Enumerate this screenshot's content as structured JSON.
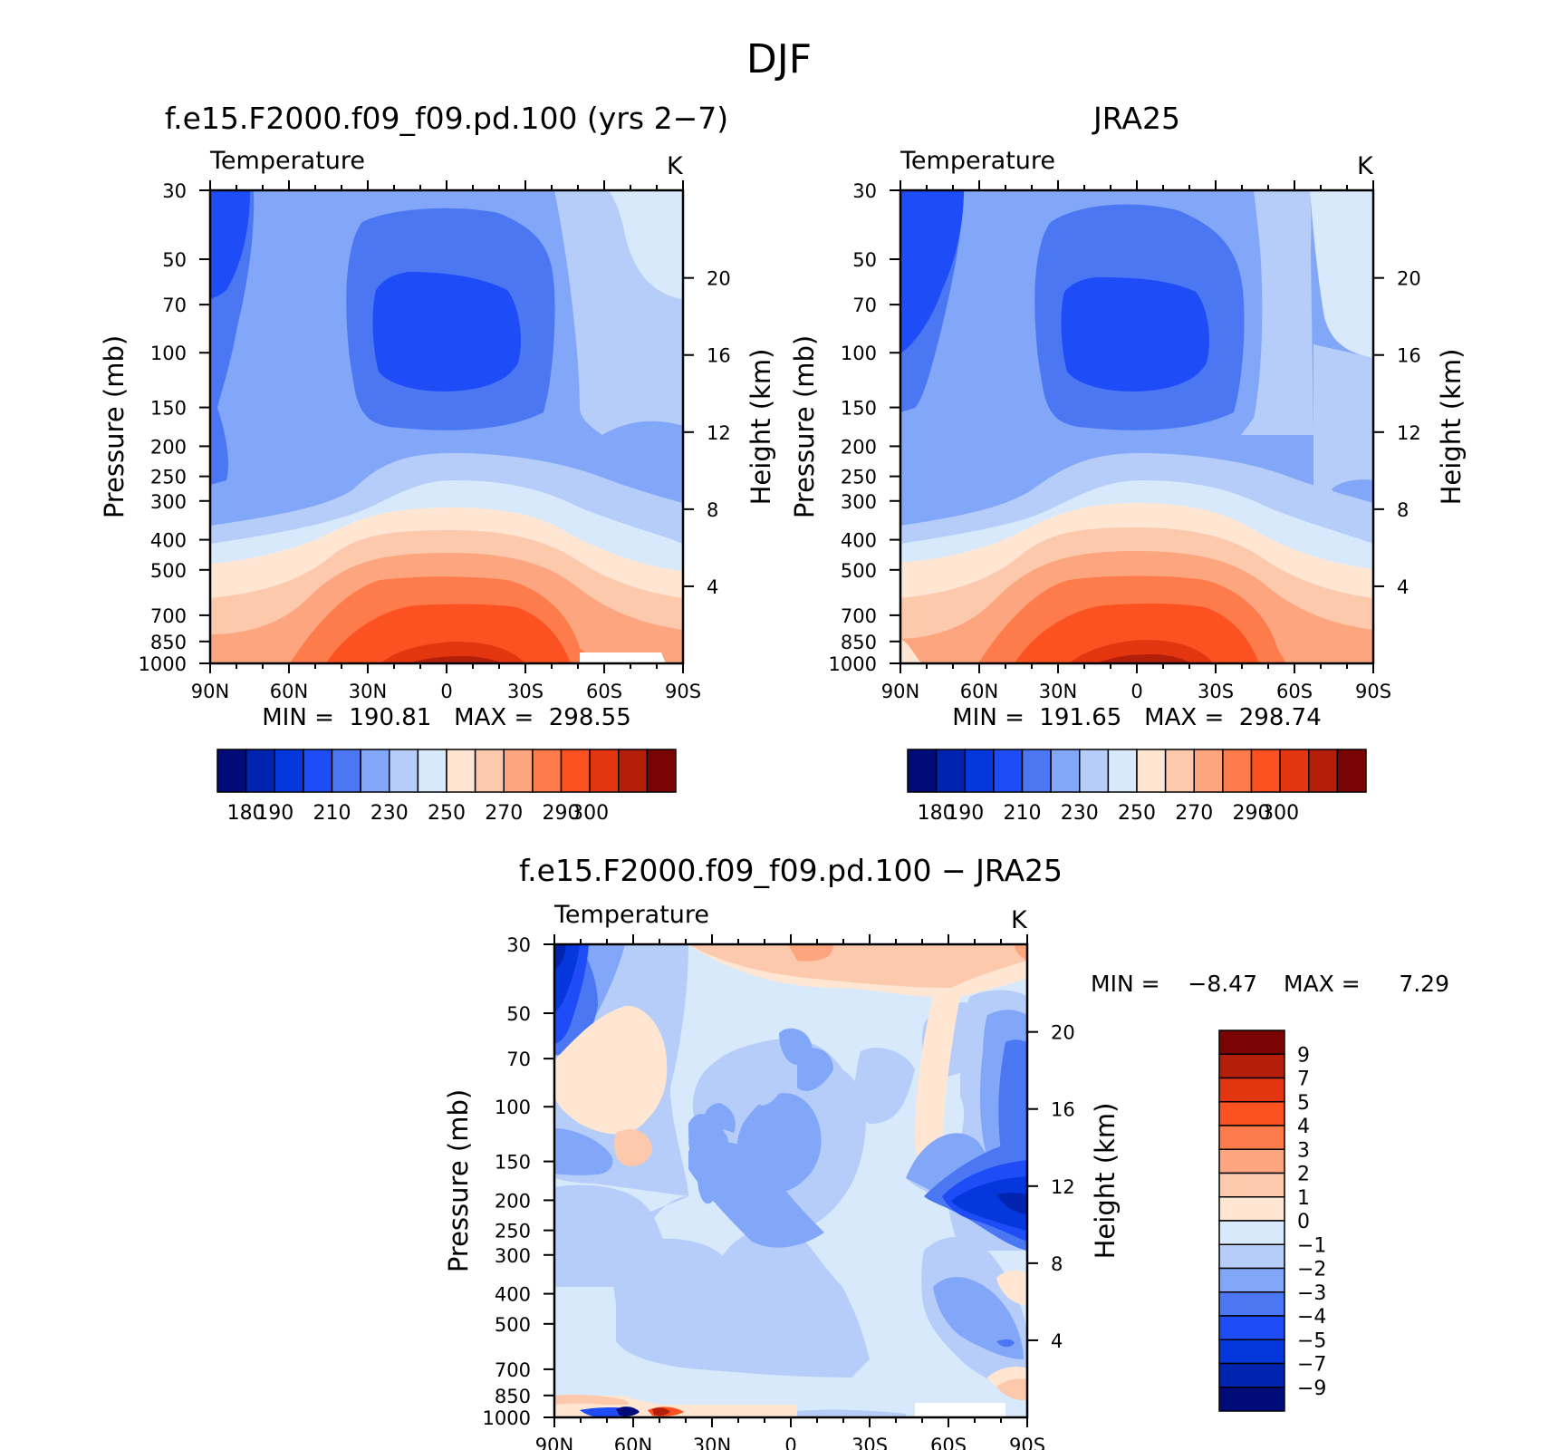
{
  "figure_title": "DJF",
  "chart_data": [
    {
      "type": "heatmap",
      "title": "f.e15.F2000.f09_f09.pd.100 (yrs 2−7)",
      "subtitle": "Temperature",
      "units": "K",
      "xlabel": "",
      "ylabel": "Pressure (mb)",
      "y2label": "Height (km)",
      "x_ticklabels": [
        "90N",
        "60N",
        "30N",
        "0",
        "30S",
        "60S",
        "90S"
      ],
      "y_ticklabels": [
        "30",
        "50",
        "70",
        "100",
        "150",
        "200",
        "250",
        "300",
        "400",
        "500",
        "700",
        "850",
        "1000"
      ],
      "y2_ticklabels": [
        "20",
        "16",
        "12",
        "8",
        "4"
      ],
      "ylim": [
        1000,
        30
      ],
      "y_scale": "log",
      "min_max_text": "MIN =  190.81   MAX =  298.55",
      "min": 190.81,
      "max": 298.55,
      "colorbar": {
        "orientation": "horizontal",
        "levels": [
          180,
          190,
          200,
          210,
          220,
          230,
          240,
          250,
          260,
          270,
          280,
          290,
          300
        ],
        "label_text": [
          "180",
          "190",
          "210",
          "230",
          "250",
          "270",
          "290",
          "300"
        ],
        "colors": [
          "#000b7a",
          "#0024b0",
          "#0538dc",
          "#1e4cf7",
          "#4b78f2",
          "#82a7f8",
          "#b5cdf8",
          "#d8e9fb",
          "#ffe6d3",
          "#fcc9ad",
          "#fda57f",
          "#fe7c4b",
          "#fc5221",
          "#e33610",
          "#b41f0b",
          "#7a0404"
        ]
      }
    },
    {
      "type": "heatmap",
      "title": "JRA25",
      "subtitle": "Temperature",
      "units": "K",
      "xlabel": "",
      "ylabel": "Pressure (mb)",
      "y2label": "Height (km)",
      "x_ticklabels": [
        "90N",
        "60N",
        "30N",
        "0",
        "30S",
        "60S",
        "90S"
      ],
      "y_ticklabels": [
        "30",
        "50",
        "70",
        "100",
        "150",
        "200",
        "250",
        "300",
        "400",
        "500",
        "700",
        "850",
        "1000"
      ],
      "y2_ticklabels": [
        "20",
        "16",
        "12",
        "8",
        "4"
      ],
      "ylim": [
        1000,
        30
      ],
      "y_scale": "log",
      "min_max_text": "MIN =  191.65   MAX =  298.74",
      "min": 191.65,
      "max": 298.74,
      "colorbar": {
        "orientation": "horizontal",
        "levels": [
          180,
          190,
          200,
          210,
          220,
          230,
          240,
          250,
          260,
          270,
          280,
          290,
          300
        ],
        "label_text": [
          "180",
          "190",
          "210",
          "230",
          "250",
          "270",
          "290",
          "300"
        ],
        "colors": [
          "#000b7a",
          "#0024b0",
          "#0538dc",
          "#1e4cf7",
          "#4b78f2",
          "#82a7f8",
          "#b5cdf8",
          "#d8e9fb",
          "#ffe6d3",
          "#fcc9ad",
          "#fda57f",
          "#fe7c4b",
          "#fc5221",
          "#e33610",
          "#b41f0b",
          "#7a0404"
        ]
      }
    },
    {
      "type": "heatmap",
      "title": "f.e15.F2000.f09_f09.pd.100 − JRA25",
      "subtitle": "Temperature",
      "units": "K",
      "xlabel": "",
      "ylabel": "Pressure (mb)",
      "y2label": "Height (km)",
      "x_ticklabels": [
        "90N",
        "60N",
        "30N",
        "0",
        "30S",
        "60S",
        "90S"
      ],
      "y_ticklabels": [
        "30",
        "50",
        "70",
        "100",
        "150",
        "200",
        "250",
        "300",
        "400",
        "500",
        "700",
        "850",
        "1000"
      ],
      "y2_ticklabels": [
        "20",
        "16",
        "12",
        "8",
        "4"
      ],
      "ylim": [
        1000,
        30
      ],
      "y_scale": "log",
      "min_label": "MIN =",
      "min_value": "−8.47",
      "max_label": "MAX =",
      "max_value": "7.29",
      "min": -8.47,
      "max": 7.29,
      "colorbar": {
        "orientation": "vertical",
        "label_text": [
          "9",
          "7",
          "5",
          "4",
          "3",
          "2",
          "1",
          "0",
          "−1",
          "−2",
          "−3",
          "−4",
          "−5",
          "−7",
          "−9"
        ],
        "colors_top_to_bottom": [
          "#7a0404",
          "#b41f0b",
          "#e33610",
          "#fc5221",
          "#fe7c4b",
          "#fda57f",
          "#fcc9ad",
          "#ffe6d3",
          "#d8e9fb",
          "#b5cdf8",
          "#82a7f8",
          "#4b78f2",
          "#1e4cf7",
          "#0538dc",
          "#0024b0",
          "#000b7a"
        ]
      }
    }
  ]
}
